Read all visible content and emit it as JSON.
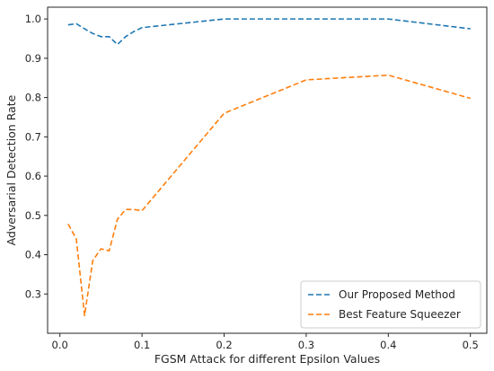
{
  "chart_data": {
    "type": "line",
    "title": "",
    "xlabel": "FGSM Attack for different Epsilon Values",
    "ylabel": "Adversarial Detection Rate",
    "xlim": [
      -0.015,
      0.52
    ],
    "ylim": [
      0.2,
      1.03
    ],
    "xticks": [
      0.0,
      0.1,
      0.2,
      0.3,
      0.4,
      0.5
    ],
    "xtick_labels": [
      "0.0",
      "0.1",
      "0.2",
      "0.3",
      "0.4",
      "0.5"
    ],
    "yticks": [
      0.3,
      0.4,
      0.5,
      0.6,
      0.7,
      0.8,
      0.9,
      1.0
    ],
    "ytick_labels": [
      "0.3",
      "0.4",
      "0.5",
      "0.6",
      "0.7",
      "0.8",
      "0.9",
      "1.0"
    ],
    "grid": false,
    "legend_position": "bottom-right",
    "series": [
      {
        "name": "Our Proposed Method",
        "color": "#1f77b4",
        "line_style": "dashed",
        "x": [
          0.01,
          0.02,
          0.03,
          0.04,
          0.05,
          0.06,
          0.07,
          0.08,
          0.09,
          0.1,
          0.2,
          0.3,
          0.4,
          0.5
        ],
        "y": [
          0.985,
          0.988,
          0.975,
          0.963,
          0.955,
          0.955,
          0.935,
          0.955,
          0.968,
          0.978,
          1.0,
          1.0,
          1.0,
          0.975
        ]
      },
      {
        "name": "Best Feature Squeezer",
        "color": "#ff7f0e",
        "line_style": "dashed",
        "x": [
          0.01,
          0.02,
          0.03,
          0.04,
          0.05,
          0.06,
          0.07,
          0.08,
          0.09,
          0.1,
          0.2,
          0.3,
          0.4,
          0.5
        ],
        "y": [
          0.478,
          0.44,
          0.245,
          0.385,
          0.415,
          0.41,
          0.49,
          0.515,
          0.515,
          0.512,
          0.76,
          0.845,
          0.857,
          0.798
        ]
      }
    ]
  }
}
